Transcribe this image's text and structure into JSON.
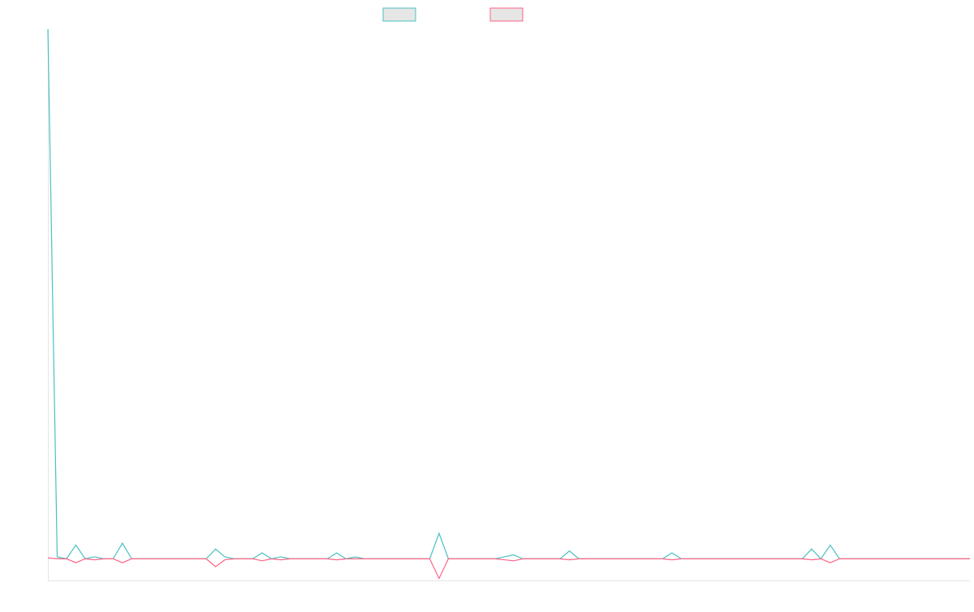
{
  "colors": {
    "series_a": "#4bc0c0",
    "series_b": "#ff6384",
    "legend_fill": "#e6e6e6",
    "axis": "#e5e5e5"
  },
  "chart_data": {
    "type": "line",
    "title": "",
    "xlabel": "",
    "ylabel": "",
    "x_count": 100,
    "ylim": [
      -11,
      270
    ],
    "grid": false,
    "legend_position": "top-center",
    "series": [
      {
        "name": "",
        "color": "#4bc0c0",
        "values": [
          271,
          0,
          0,
          7,
          0,
          1,
          0,
          0,
          0,
          0,
          0,
          8,
          0,
          0,
          0,
          0,
          0,
          0,
          0,
          0,
          0,
          0,
          0,
          0,
          0,
          0,
          0,
          0,
          0,
          0,
          0,
          0,
          0,
          0,
          0,
          0,
          0,
          0,
          0,
          0,
          0,
          0,
          0,
          0,
          0,
          0,
          0,
          0,
          0,
          0,
          0,
          0,
          0,
          0,
          0,
          0,
          0,
          0,
          0,
          0,
          0,
          0,
          0,
          0,
          0,
          0,
          0,
          0,
          0,
          0,
          0,
          0,
          0,
          0,
          0,
          0,
          0,
          0,
          0,
          0,
          0,
          0,
          0,
          0,
          0,
          0,
          0,
          0,
          0,
          0,
          0,
          0,
          0,
          0,
          0,
          0,
          0,
          0,
          0,
          0
        ]
      },
      {
        "name": "",
        "color": "#ff6384",
        "values": [
          0,
          0,
          0,
          -2,
          0,
          0,
          0,
          0,
          0,
          0,
          0,
          -2,
          0,
          0,
          0,
          0,
          0,
          0,
          0,
          0,
          0,
          0,
          0,
          0,
          0,
          0,
          0,
          0,
          0,
          0,
          0,
          0,
          0,
          0,
          0,
          0,
          0,
          0,
          0,
          0,
          0,
          0,
          0,
          0,
          0,
          0,
          0,
          0,
          0,
          0,
          0,
          0,
          0,
          0,
          0,
          0,
          0,
          0,
          0,
          0,
          0,
          0,
          0,
          0,
          0,
          0,
          0,
          0,
          0,
          0,
          0,
          0,
          0,
          0,
          0,
          0,
          0,
          0,
          0,
          0,
          0,
          0,
          0,
          0,
          0,
          0,
          0,
          0,
          0,
          0,
          0,
          0,
          0,
          0,
          0,
          0,
          0,
          0,
          0,
          0
        ]
      }
    ]
  }
}
